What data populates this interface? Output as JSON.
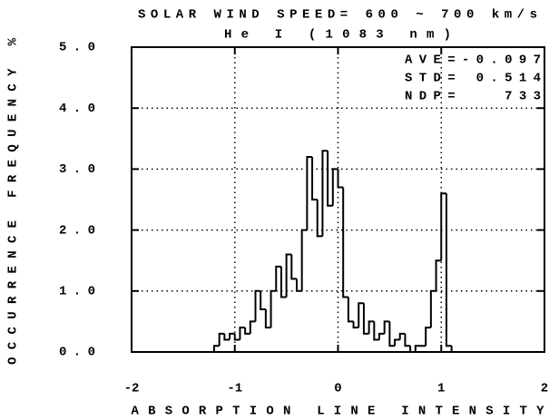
{
  "chart_data": {
    "type": "histogram",
    "title": "SOLAR WIND SPEED= 600 ~ 700 km/s",
    "subtitle": "He I (1083 nm)",
    "x_label": "ABSORPTION LINE INTENSITY",
    "y_label": "OCCURRENCE FREQUENCY %",
    "annotations": [
      "AVE=-0.097",
      "STD= 0.514",
      "NDP=   733"
    ],
    "bins": [
      -1.2,
      -1.15,
      -1.1,
      -1.05,
      -1,
      -0.95,
      -0.9,
      -0.85,
      -0.8,
      -0.75,
      -0.7,
      -0.65,
      -0.6,
      -0.55,
      -0.5,
      -0.45,
      -0.4,
      -0.35,
      -0.3,
      -0.25,
      -0.2,
      -0.15,
      -0.1,
      -0.05,
      0,
      0.05,
      0.1,
      0.15,
      0.2,
      0.25,
      0.3,
      0.35,
      0.4,
      0.45,
      0.5,
      0.55,
      0.6,
      0.65,
      0.7,
      0.75,
      0.8,
      0.85,
      0.9,
      0.95,
      1,
      1.05,
      1.1
    ],
    "values": [
      0.1,
      0.3,
      0.2,
      0.3,
      0.2,
      0.4,
      0.3,
      0.5,
      1.0,
      0.7,
      0.4,
      1.0,
      1.4,
      0.9,
      1.6,
      1.2,
      1.0,
      2.0,
      3.2,
      2.5,
      1.9,
      3.3,
      2.4,
      3.0,
      2.7,
      0.9,
      0.5,
      0.4,
      0.8,
      0.3,
      0.5,
      0.2,
      0.3,
      0.5,
      0.1,
      0.2,
      0.3,
      0.1,
      0.0,
      0.1,
      0.1,
      0.4,
      1.0,
      1.5,
      2.6,
      0.1
    ],
    "color": "#000000",
    "xlim": [
      -2,
      2
    ],
    "xticks": [
      -2,
      -1,
      0,
      1,
      2
    ],
    "ylim": [
      0,
      5
    ],
    "yticks": [
      {
        "value": 0,
        "label": "0.0"
      },
      {
        "value": 1,
        "label": "1.0"
      },
      {
        "value": 2,
        "label": "2.0"
      },
      {
        "value": 3,
        "label": "3.0"
      },
      {
        "value": 4,
        "label": "4.0"
      },
      {
        "value": 5,
        "label": "5.0"
      }
    ],
    "grid": true
  }
}
